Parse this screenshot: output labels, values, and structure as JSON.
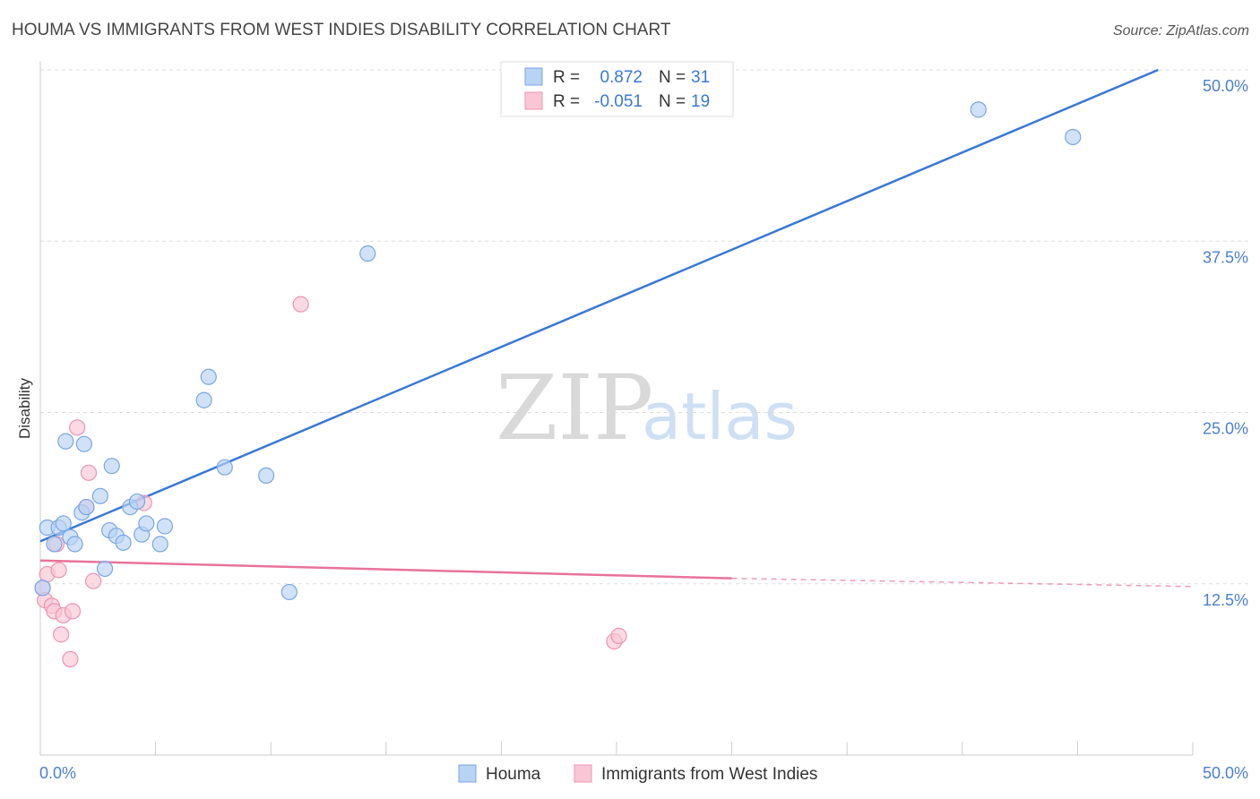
{
  "title": "HOUMA VS IMMIGRANTS FROM WEST INDIES DISABILITY CORRELATION CHART",
  "source": "Source: ZipAtlas.com",
  "watermark": {
    "zip": "ZIP",
    "atlas": "atlas"
  },
  "legend": {
    "houma": {
      "r_label": "R =",
      "r_value": "0.872",
      "n_label": "N =",
      "n_value": "31"
    },
    "west_indies": {
      "r_label": "R =",
      "r_value": "-0.051",
      "n_label": "N =",
      "n_value": "19"
    }
  },
  "bottom_legend": {
    "houma": "Houma",
    "west_indies": "Immigrants from West Indies"
  },
  "colors": {
    "houma_fill": "#b9d3f5",
    "houma_stroke": "#7aa6e3",
    "houma_line": "#3a78d4",
    "wi_fill": "#f9c6d6",
    "wi_stroke": "#ee94b1",
    "wi_line": "#e8739a",
    "tick_label": "#4a7fd0",
    "grid": "#dddddd"
  },
  "chart_data": {
    "type": "scatter",
    "title": "HOUMA VS IMMIGRANTS FROM WEST INDIES DISABILITY CORRELATION CHART",
    "xlabel": "",
    "ylabel": "Disability",
    "xlim": [
      0,
      50
    ],
    "ylim": [
      0,
      50
    ],
    "x_tick_labels": [
      "0.0%",
      "50.0%"
    ],
    "y_ticks": [
      12.5,
      25.0,
      37.5,
      50.0
    ],
    "y_tick_labels": [
      "12.5%",
      "25.0%",
      "37.5%",
      "50.0%"
    ],
    "series": [
      {
        "name": "Houma",
        "R": 0.872,
        "N": 31,
        "points": [
          [
            0.3,
            16.6
          ],
          [
            0.6,
            15.4
          ],
          [
            0.8,
            16.6
          ],
          [
            1.0,
            16.9
          ],
          [
            1.1,
            22.9
          ],
          [
            1.3,
            15.9
          ],
          [
            1.5,
            15.4
          ],
          [
            1.8,
            17.7
          ],
          [
            1.9,
            22.7
          ],
          [
            2.0,
            18.1
          ],
          [
            2.6,
            18.9
          ],
          [
            2.8,
            13.6
          ],
          [
            3.0,
            16.4
          ],
          [
            3.1,
            21.1
          ],
          [
            3.3,
            16.0
          ],
          [
            3.6,
            15.5
          ],
          [
            3.9,
            18.1
          ],
          [
            4.2,
            18.5
          ],
          [
            4.4,
            16.1
          ],
          [
            4.6,
            16.9
          ],
          [
            5.2,
            15.4
          ],
          [
            5.4,
            16.7
          ],
          [
            7.1,
            25.9
          ],
          [
            7.3,
            27.6
          ],
          [
            8.0,
            21.0
          ],
          [
            9.8,
            20.4
          ],
          [
            10.8,
            11.9
          ],
          [
            14.2,
            36.6
          ],
          [
            40.7,
            47.1
          ],
          [
            44.8,
            45.1
          ],
          [
            0.1,
            12.2
          ]
        ],
        "trend": {
          "x": [
            0,
            48.5
          ],
          "y": [
            15.6,
            50.0
          ]
        }
      },
      {
        "name": "Immigrants from West Indies",
        "R": -0.051,
        "N": 19,
        "points": [
          [
            0.1,
            12.2
          ],
          [
            0.2,
            11.3
          ],
          [
            0.3,
            13.2
          ],
          [
            0.5,
            10.9
          ],
          [
            0.6,
            10.5
          ],
          [
            0.7,
            15.4
          ],
          [
            0.8,
            13.5
          ],
          [
            0.9,
            8.8
          ],
          [
            1.0,
            10.2
          ],
          [
            1.3,
            7.0
          ],
          [
            1.4,
            10.5
          ],
          [
            1.6,
            23.9
          ],
          [
            2.0,
            18.1
          ],
          [
            2.1,
            20.6
          ],
          [
            2.3,
            12.7
          ],
          [
            4.5,
            18.4
          ],
          [
            11.3,
            32.9
          ],
          [
            24.9,
            8.3
          ],
          [
            25.1,
            8.7
          ]
        ],
        "trend": {
          "x": [
            0,
            30
          ],
          "y": [
            14.2,
            12.9
          ],
          "dashed_to": [
            50,
            12.3
          ]
        }
      }
    ]
  }
}
